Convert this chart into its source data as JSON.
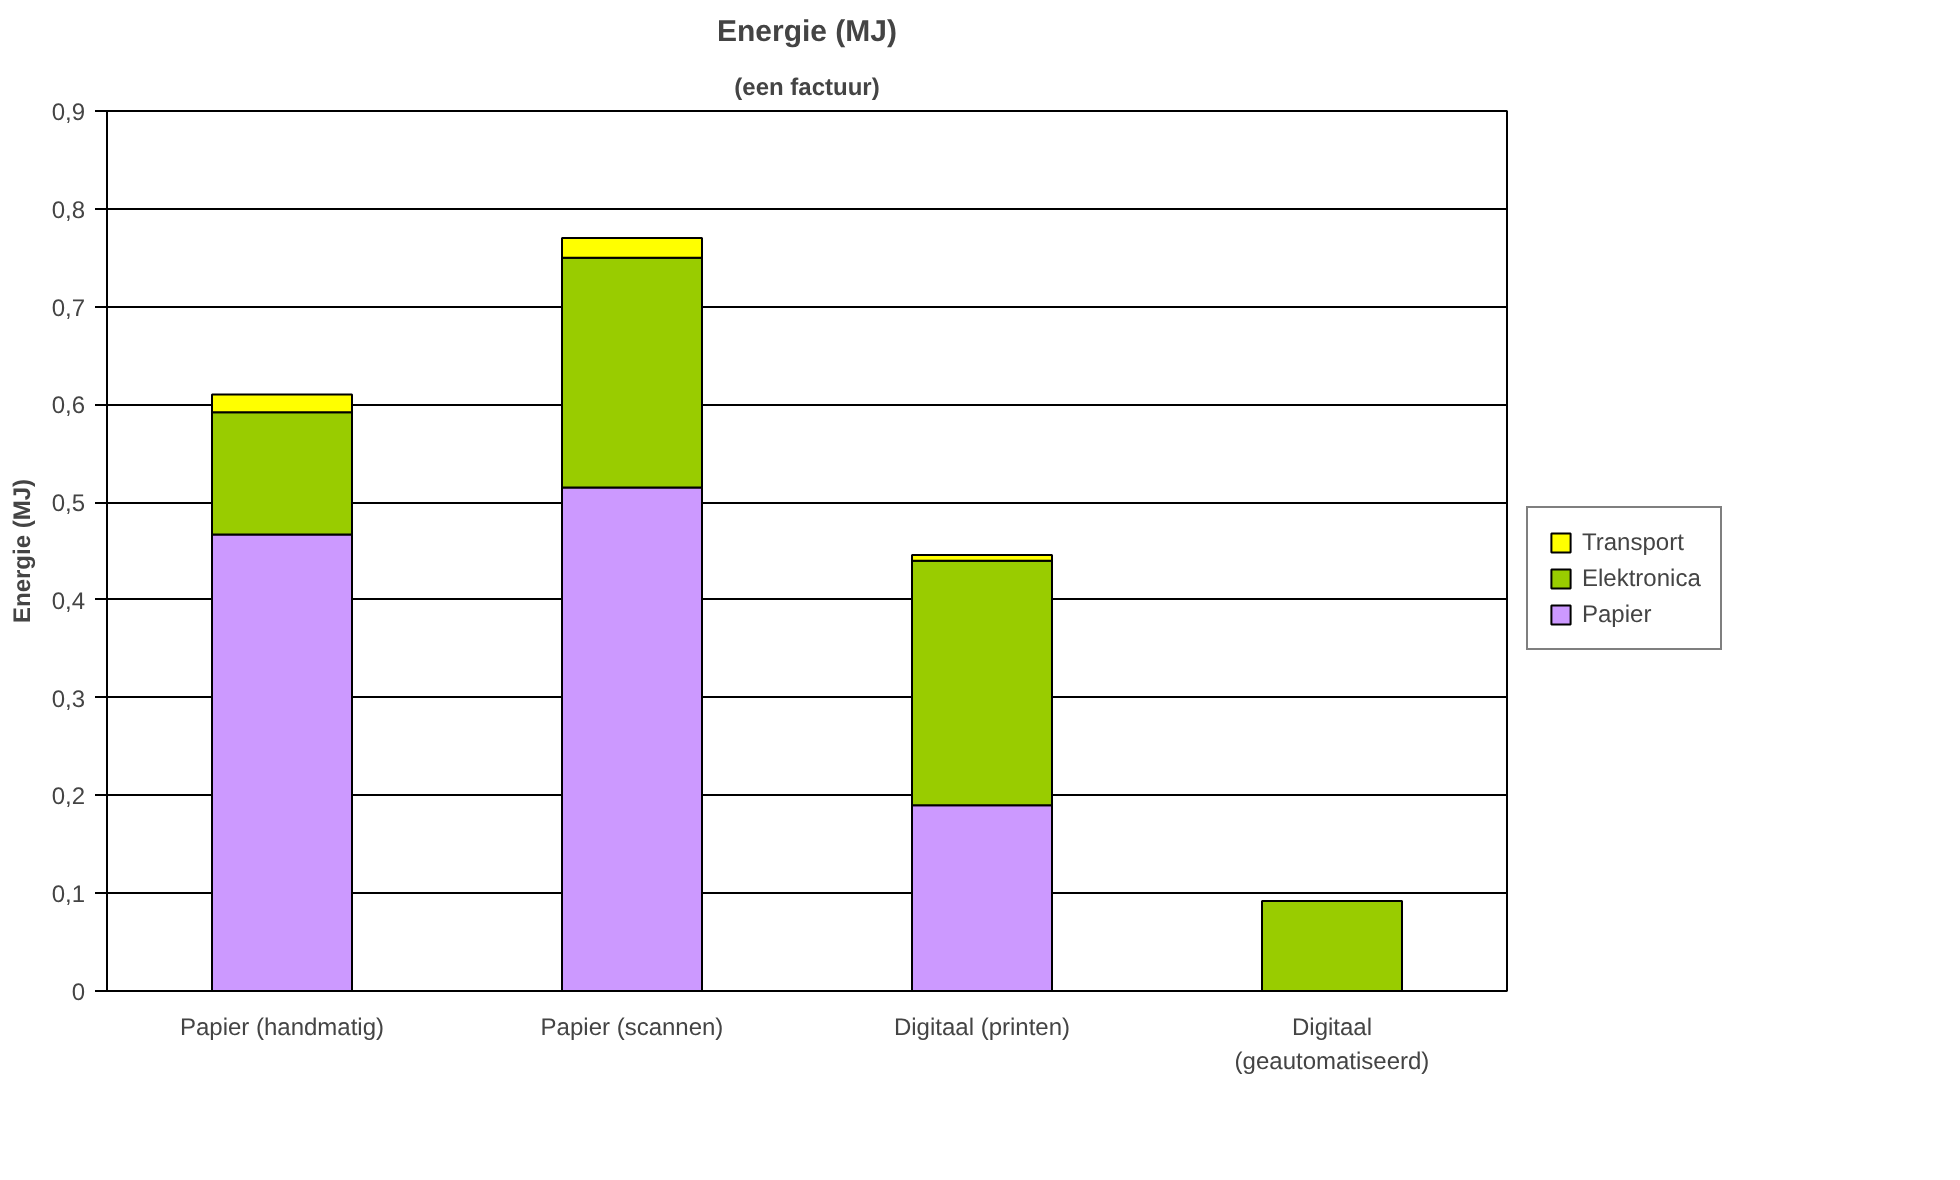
{
  "chart_data": {
    "type": "bar",
    "stacked": true,
    "title": "Energie (MJ)",
    "subtitle": "(een factuur)",
    "ylabel": "Energie (MJ)",
    "categories": [
      "Papier (handmatig)",
      "Papier (scannen)",
      "Digitaal (printen)",
      "Digitaal\n(geautomatiseerd)"
    ],
    "series": [
      {
        "name": "Papier",
        "color": "#cc99ff",
        "values": [
          0.467,
          0.515,
          0.19,
          0
        ]
      },
      {
        "name": "Elektronica",
        "color": "#99cc00",
        "values": [
          0.125,
          0.235,
          0.25,
          0.092
        ]
      },
      {
        "name": "Transport",
        "color": "#ffff00",
        "values": [
          0.018,
          0.02,
          0.006,
          0
        ]
      }
    ],
    "ylim": [
      0,
      0.9
    ],
    "yticks": [
      {
        "value": 0,
        "label": "0"
      },
      {
        "value": 0.1,
        "label": "0,1"
      },
      {
        "value": 0.2,
        "label": "0,2"
      },
      {
        "value": 0.3,
        "label": "0,3"
      },
      {
        "value": 0.4,
        "label": "0,4"
      },
      {
        "value": 0.5,
        "label": "0,5"
      },
      {
        "value": 0.6,
        "label": "0,6"
      },
      {
        "value": 0.7,
        "label": "0,7"
      },
      {
        "value": 0.8,
        "label": "0,8"
      },
      {
        "value": 0.9,
        "label": "0,9"
      }
    ],
    "grid": "y",
    "legend": "right"
  }
}
